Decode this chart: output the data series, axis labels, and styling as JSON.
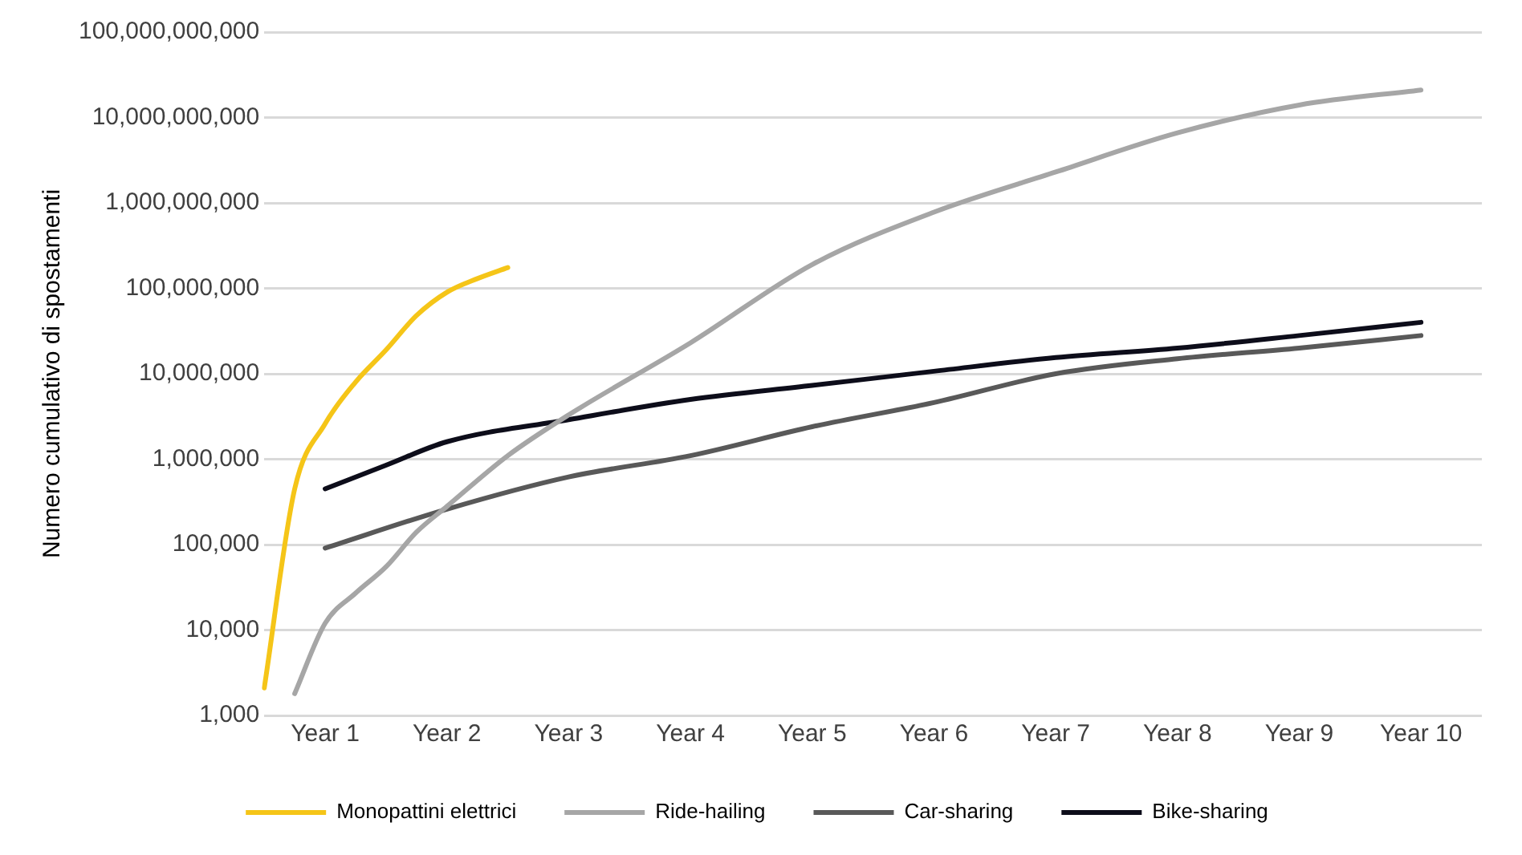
{
  "chart_data": {
    "type": "line",
    "ylabel": "Numero cumulativo di spostamenti",
    "log": "y",
    "grid": "y",
    "legend": "bottom",
    "marker": "none",
    "line_style": "solid",
    "categories": [
      null,
      null,
      "Year 1",
      null,
      null,
      null,
      "Year 2",
      null,
      null,
      null,
      "Year 3",
      null,
      null,
      null,
      "Year 4",
      null,
      null,
      null,
      "Year 5",
      null,
      null,
      null,
      "Year 6",
      null,
      null,
      null,
      "Year 7",
      null,
      null,
      null,
      "Year 8",
      null,
      null,
      null,
      "Year 9",
      null,
      null,
      null,
      "Year 10",
      null,
      null
    ],
    "ylim": [
      1000,
      100000000000
    ],
    "yticks": [
      {
        "value": 1000,
        "label": "1,000"
      },
      {
        "value": 10000,
        "label": "10,000"
      },
      {
        "value": 100000,
        "label": "100,000"
      },
      {
        "value": 1000000,
        "label": "1,000,000"
      },
      {
        "value": 10000000,
        "label": "10,000,000"
      },
      {
        "value": 100000000,
        "label": "100,000,000"
      },
      {
        "value": 1000000000,
        "label": "1,000,000,000"
      },
      {
        "value": 10000000000,
        "label": "10,000,000,000"
      },
      {
        "value": 100000000000,
        "label": "100,000,000,000"
      }
    ],
    "series": [
      {
        "name": "Monopattini elettrici",
        "color": "#f5c518",
        "values": [
          2100,
          450000,
          2600000,
          8000000,
          19000000,
          48000000,
          90000000,
          130000000,
          175000000,
          null,
          null,
          null,
          null,
          null,
          null,
          null,
          null,
          null,
          null,
          null,
          null,
          null,
          null,
          null,
          null,
          null,
          null,
          null,
          null,
          null,
          null,
          null,
          null,
          null,
          null,
          null,
          null,
          null,
          null,
          null,
          null
        ]
      },
      {
        "name": "Ride-hailing",
        "color": "#a6a6a6",
        "values": [
          null,
          1800,
          12000,
          27000,
          55000,
          140000,
          280000,
          null,
          1100000,
          null,
          3300000,
          null,
          null,
          null,
          23000000,
          null,
          null,
          null,
          190000000,
          null,
          null,
          null,
          780000000,
          null,
          null,
          null,
          2300000000,
          null,
          null,
          null,
          6600000000,
          null,
          null,
          null,
          14000000000,
          null,
          null,
          null,
          21000000000,
          null,
          null
        ]
      },
      {
        "name": "Car-sharing",
        "color": "#595959",
        "values": [
          null,
          null,
          91000,
          null,
          null,
          null,
          260000,
          null,
          null,
          null,
          620000,
          null,
          null,
          null,
          1100000,
          null,
          null,
          null,
          2400000,
          null,
          null,
          null,
          4600000,
          null,
          null,
          null,
          10000000,
          null,
          null,
          null,
          15000000,
          null,
          null,
          null,
          20000000,
          null,
          null,
          null,
          28000000,
          null,
          null
        ]
      },
      {
        "name": "Bike-sharing",
        "color": "#0d0d1a",
        "values": [
          null,
          null,
          450000,
          null,
          850000,
          null,
          1600000,
          null,
          null,
          null,
          2900000,
          null,
          null,
          null,
          5000000,
          null,
          null,
          null,
          7300000,
          null,
          null,
          null,
          10700000,
          null,
          null,
          null,
          15500000,
          null,
          null,
          null,
          20000000,
          null,
          null,
          null,
          28000000,
          null,
          null,
          null,
          40000000,
          null,
          null
        ]
      }
    ]
  }
}
